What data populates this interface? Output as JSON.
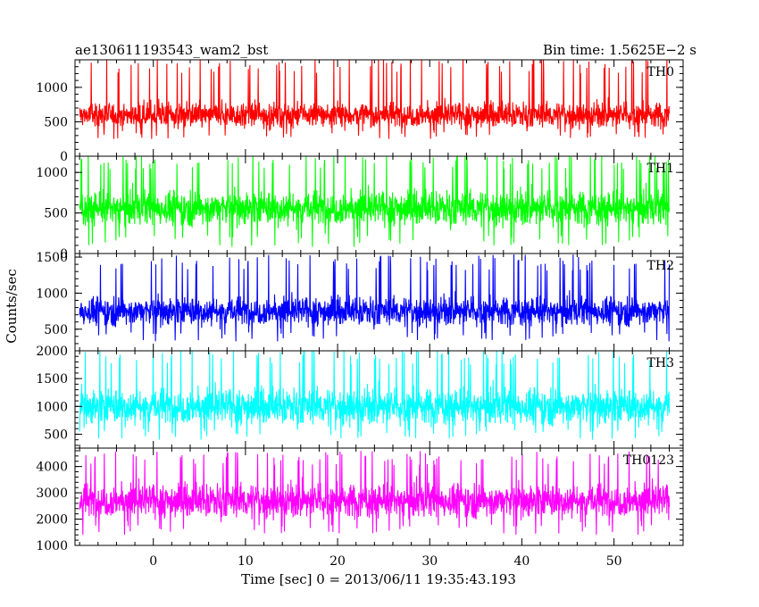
{
  "header": {
    "obs_id": "ae130611193543_wam2_bst",
    "bin_time": "Bin time: 1.5625E−2 s"
  },
  "y_axis_label": "Counts/sec",
  "x_axis_label": "Time [sec] 0 = 2013/06/11 19:35:43.193",
  "chart_data": {
    "type": "line",
    "x_range": [
      -8.5,
      57.5
    ],
    "x_data_range": [
      -8.0,
      56.0
    ],
    "x_ticks": [
      0,
      10,
      20,
      30,
      40,
      50
    ],
    "x_ticklabels": [
      "0",
      "10",
      "20",
      "30",
      "40",
      "50"
    ],
    "panels": [
      {
        "name": "TH0",
        "color": "#ff0000",
        "ylim": [
          0,
          1400
        ],
        "yticks": [
          0,
          500,
          1000
        ],
        "yticklabels": [
          "0",
          "500",
          "1000"
        ],
        "mean": 600,
        "spread": 130,
        "peak": 1400,
        "floor": 250
      },
      {
        "name": "TH1",
        "color": "#00ff00",
        "ylim": [
          0,
          1200
        ],
        "yticks": [
          0,
          500,
          1000
        ],
        "yticklabels": [
          "0",
          "500",
          "1000"
        ],
        "mean": 560,
        "spread": 150,
        "peak": 1200,
        "floor": 80
      },
      {
        "name": "TH2",
        "color": "#0000ff",
        "ylim": [
          200,
          1550
        ],
        "yticks": [
          500,
          1000,
          1500
        ],
        "yticklabels": [
          "500",
          "1000",
          "1500"
        ],
        "mean": 750,
        "spread": 140,
        "peak": 1500,
        "floor": 330
      },
      {
        "name": "TH3",
        "color": "#00ffff",
        "ylim": [
          250,
          2000
        ],
        "yticks": [
          500,
          1000,
          1500,
          2000
        ],
        "yticklabels": [
          "500",
          "1000",
          "1500",
          "2000"
        ],
        "mean": 1000,
        "spread": 230,
        "peak": 2000,
        "floor": 400
      },
      {
        "name": "TH0123",
        "color": "#ff00ff",
        "ylim": [
          1000,
          4700
        ],
        "yticks": [
          1000,
          2000,
          3000,
          4000
        ],
        "yticklabels": [
          "1000",
          "2000",
          "3000",
          "4000"
        ],
        "mean": 2700,
        "spread": 450,
        "peak": 4500,
        "floor": 1400
      }
    ]
  }
}
